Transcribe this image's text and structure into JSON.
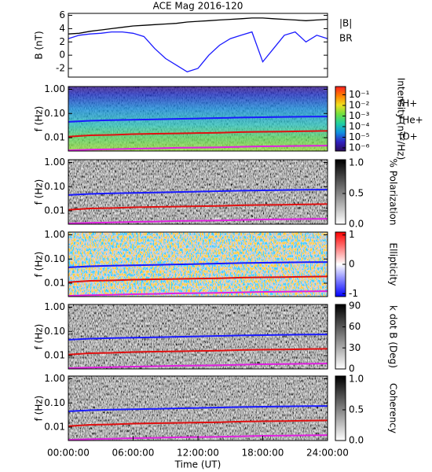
{
  "chart_data": [
    {
      "type": "line",
      "title": "ACE Mag 2016-120",
      "ylabel": "B (nT)",
      "x": [
        0,
        1,
        2,
        3,
        4,
        5,
        6,
        7,
        8,
        9,
        10,
        11,
        12,
        13,
        14,
        15,
        16,
        17,
        18,
        19,
        20,
        21,
        22,
        23,
        24
      ],
      "xlim": [
        0,
        24
      ],
      "ylim": [
        -3.3,
        6.3
      ],
      "yticks": [
        -2,
        0,
        2,
        4,
        6
      ],
      "series": [
        {
          "name": "|B|",
          "color": "#000000",
          "values": [
            3.2,
            3.3,
            3.6,
            3.8,
            4,
            4.2,
            4.4,
            4.5,
            4.6,
            4.7,
            4.8,
            5,
            5.1,
            5.2,
            5.3,
            5.4,
            5.5,
            5.6,
            5.6,
            5.5,
            5.4,
            5.3,
            5.2,
            5.3,
            5.4
          ]
        },
        {
          "name": "BR",
          "color": "#1a1aff",
          "values": [
            2.5,
            3,
            3.2,
            3.3,
            3.5,
            3.5,
            3.3,
            2.8,
            1,
            -0.5,
            -1.5,
            -2.5,
            -2,
            0,
            1.5,
            2.5,
            3,
            3.5,
            -1,
            1,
            3,
            3.5,
            2,
            3,
            2.5
          ]
        }
      ]
    },
    {
      "type": "spectrogram",
      "ylabel": "f (Hz)",
      "ylog": true,
      "legend": true,
      "x": [
        0,
        2,
        4,
        6,
        8,
        10,
        12,
        14,
        16,
        18,
        20,
        22,
        24
      ],
      "xlim": [
        0,
        24
      ],
      "ylim": [
        0.0028,
        1.3
      ],
      "yticks": [
        {
          "value": 1,
          "label": "1.00"
        },
        {
          "value": 0.1,
          "label": "0.10"
        },
        {
          "value": 0.01,
          "label": "0.01"
        }
      ],
      "colorbar": {
        "label": "Intensity (nT²/Hz)",
        "log": true,
        "lim": [
          5e-07,
          0.6
        ],
        "colors": [
          "#2a0a5a",
          "#3020c0",
          "#1090e0",
          "#20d0a0",
          "#70e040",
          "#f0e020",
          "#ff8000",
          "#ff2020"
        ],
        "ticks": [
          {
            "value": 0.1,
            "label": "10⁻¹"
          },
          {
            "value": 0.01,
            "label": "10⁻²"
          },
          {
            "value": 0.001,
            "label": "10⁻³"
          },
          {
            "value": 0.0001,
            "label": "10⁻⁴"
          },
          {
            "value": 1e-05,
            "label": "10⁻⁵"
          },
          {
            "value": 1e-06,
            "label": "10⁻⁶"
          }
        ]
      },
      "series": [
        {
          "name": "fH+",
          "color": "#1a1aff",
          "values": [
            0.045,
            0.05,
            0.053,
            0.055,
            0.057,
            0.06,
            0.062,
            0.065,
            0.068,
            0.07,
            0.072,
            0.074,
            0.075
          ]
        },
        {
          "name": "fHe+",
          "color": "#e01010",
          "values": [
            0.011,
            0.0125,
            0.013,
            0.014,
            0.0145,
            0.015,
            0.0155,
            0.016,
            0.017,
            0.0175,
            0.018,
            0.0185,
            0.019
          ]
        },
        {
          "name": "fO+",
          "color": "#e020e0",
          "values": [
            0.003,
            0.0032,
            0.0033,
            0.0035,
            0.0036,
            0.0038,
            0.0039,
            0.004,
            0.0042,
            0.0044,
            0.0045,
            0.0046,
            0.0047
          ]
        }
      ]
    },
    {
      "type": "spectrogram",
      "ylabel": "f (Hz)",
      "ylog": true,
      "x": [
        0,
        2,
        4,
        6,
        8,
        10,
        12,
        14,
        16,
        18,
        20,
        22,
        24
      ],
      "xlim": [
        0,
        24
      ],
      "ylim": [
        0.0028,
        1.3
      ],
      "yticks": [
        {
          "value": 1,
          "label": "1.00"
        },
        {
          "value": 0.1,
          "label": "0.10"
        },
        {
          "value": 0.01,
          "label": "0.01"
        }
      ],
      "colorbar": {
        "label": "% Polarization",
        "lim": [
          0,
          1.05
        ],
        "colors": [
          "#ffffff",
          "#000000"
        ],
        "ticks": [
          {
            "value": 0,
            "label": "0.0"
          },
          {
            "value": 0.5,
            "label": "0.5"
          },
          {
            "value": 1,
            "label": "1.0"
          }
        ]
      },
      "series": [
        {
          "name": "fH+",
          "color": "#1a1aff",
          "values": [
            0.045,
            0.05,
            0.053,
            0.055,
            0.057,
            0.06,
            0.062,
            0.065,
            0.068,
            0.07,
            0.072,
            0.074,
            0.075
          ]
        },
        {
          "name": "fHe+",
          "color": "#e01010",
          "values": [
            0.011,
            0.0125,
            0.013,
            0.014,
            0.0145,
            0.015,
            0.0155,
            0.016,
            0.017,
            0.0175,
            0.018,
            0.0185,
            0.019
          ]
        },
        {
          "name": "fO+",
          "color": "#e020e0",
          "values": [
            0.003,
            0.0032,
            0.0033,
            0.0035,
            0.0036,
            0.0038,
            0.0039,
            0.004,
            0.0042,
            0.0044,
            0.0045,
            0.0046,
            0.0047
          ]
        }
      ]
    },
    {
      "type": "spectrogram",
      "ylabel": "f (Hz)",
      "ylog": true,
      "x": [
        0,
        2,
        4,
        6,
        8,
        10,
        12,
        14,
        16,
        18,
        20,
        22,
        24
      ],
      "xlim": [
        0,
        24
      ],
      "ylim": [
        0.0028,
        1.3
      ],
      "yticks": [
        {
          "value": 1,
          "label": "1.00"
        },
        {
          "value": 0.1,
          "label": "0.10"
        },
        {
          "value": 0.01,
          "label": "0.01"
        }
      ],
      "colorbar": {
        "label": "Ellipticity",
        "lim": [
          -1.1,
          1.1
        ],
        "colors": [
          "#0000ff",
          "#ffffff",
          "#ff0000"
        ],
        "ticks": [
          -1,
          0,
          1
        ]
      },
      "series": [
        {
          "name": "fH+",
          "color": "#1a1aff",
          "values": [
            0.045,
            0.05,
            0.053,
            0.055,
            0.057,
            0.06,
            0.062,
            0.065,
            0.068,
            0.07,
            0.072,
            0.074,
            0.075
          ]
        },
        {
          "name": "fHe+",
          "color": "#e01010",
          "values": [
            0.011,
            0.0125,
            0.013,
            0.014,
            0.0145,
            0.015,
            0.0155,
            0.016,
            0.017,
            0.0175,
            0.018,
            0.0185,
            0.019
          ]
        },
        {
          "name": "fO+",
          "color": "#e020e0",
          "values": [
            0.003,
            0.0032,
            0.0033,
            0.0035,
            0.0036,
            0.0038,
            0.0039,
            0.004,
            0.0042,
            0.0044,
            0.0045,
            0.0046,
            0.0047
          ]
        }
      ]
    },
    {
      "type": "spectrogram",
      "ylabel": "f (Hz)",
      "ylog": true,
      "x": [
        0,
        2,
        4,
        6,
        8,
        10,
        12,
        14,
        16,
        18,
        20,
        22,
        24
      ],
      "xlim": [
        0,
        24
      ],
      "ylim": [
        0.0028,
        1.3
      ],
      "yticks": [
        {
          "value": 1,
          "label": "1.00"
        },
        {
          "value": 0.1,
          "label": "0.10"
        },
        {
          "value": 0.01,
          "label": "0.01"
        }
      ],
      "colorbar": {
        "label": "k dot B (Deg)",
        "lim": [
          0,
          92
        ],
        "colors": [
          "#ffffff",
          "#000000"
        ],
        "ticks": [
          0,
          30,
          60,
          90
        ]
      },
      "series": [
        {
          "name": "fH+",
          "color": "#1a1aff",
          "values": [
            0.045,
            0.05,
            0.053,
            0.055,
            0.057,
            0.06,
            0.062,
            0.065,
            0.068,
            0.07,
            0.072,
            0.074,
            0.075
          ]
        },
        {
          "name": "fHe+",
          "color": "#e01010",
          "values": [
            0.011,
            0.0125,
            0.013,
            0.014,
            0.0145,
            0.015,
            0.0155,
            0.016,
            0.017,
            0.0175,
            0.018,
            0.0185,
            0.019
          ]
        },
        {
          "name": "fO+",
          "color": "#e020e0",
          "values": [
            0.003,
            0.0032,
            0.0033,
            0.0035,
            0.0036,
            0.0038,
            0.0039,
            0.004,
            0.0042,
            0.0044,
            0.0045,
            0.0046,
            0.0047
          ]
        }
      ]
    },
    {
      "type": "spectrogram",
      "ylabel": "f (Hz)",
      "ylog": true,
      "xlabel": "Time (UT)",
      "x": [
        0,
        2,
        4,
        6,
        8,
        10,
        12,
        14,
        16,
        18,
        20,
        22,
        24
      ],
      "xlim": [
        0,
        24
      ],
      "ylim": [
        0.0028,
        1.3
      ],
      "xticks": [
        {
          "value": 0,
          "label": "00:00:00"
        },
        {
          "value": 6,
          "label": "06:00:00"
        },
        {
          "value": 12,
          "label": "12:00:00"
        },
        {
          "value": 18,
          "label": "18:00:00"
        },
        {
          "value": 24,
          "label": "24:00:00"
        }
      ],
      "yticks": [
        {
          "value": 1,
          "label": "1.00"
        },
        {
          "value": 0.1,
          "label": "0.10"
        },
        {
          "value": 0.01,
          "label": "0.01"
        }
      ],
      "colorbar": {
        "label": "Coherency",
        "lim": [
          0,
          1.05
        ],
        "colors": [
          "#ffffff",
          "#000000"
        ],
        "ticks": [
          {
            "value": 0,
            "label": "0.0"
          },
          {
            "value": 0.5,
            "label": "0.5"
          },
          {
            "value": 1,
            "label": "1.0"
          }
        ]
      },
      "series": [
        {
          "name": "fH+",
          "color": "#1a1aff",
          "values": [
            0.045,
            0.05,
            0.053,
            0.055,
            0.057,
            0.06,
            0.062,
            0.065,
            0.068,
            0.07,
            0.072,
            0.074,
            0.075
          ]
        },
        {
          "name": "fHe+",
          "color": "#e01010",
          "values": [
            0.011,
            0.0125,
            0.013,
            0.014,
            0.0145,
            0.015,
            0.0155,
            0.016,
            0.017,
            0.0175,
            0.018,
            0.0185,
            0.019
          ]
        },
        {
          "name": "fO+",
          "color": "#e020e0",
          "values": [
            0.003,
            0.0032,
            0.0033,
            0.0035,
            0.0036,
            0.0038,
            0.0039,
            0.004,
            0.0042,
            0.0044,
            0.0045,
            0.0046,
            0.0047
          ]
        }
      ]
    }
  ]
}
